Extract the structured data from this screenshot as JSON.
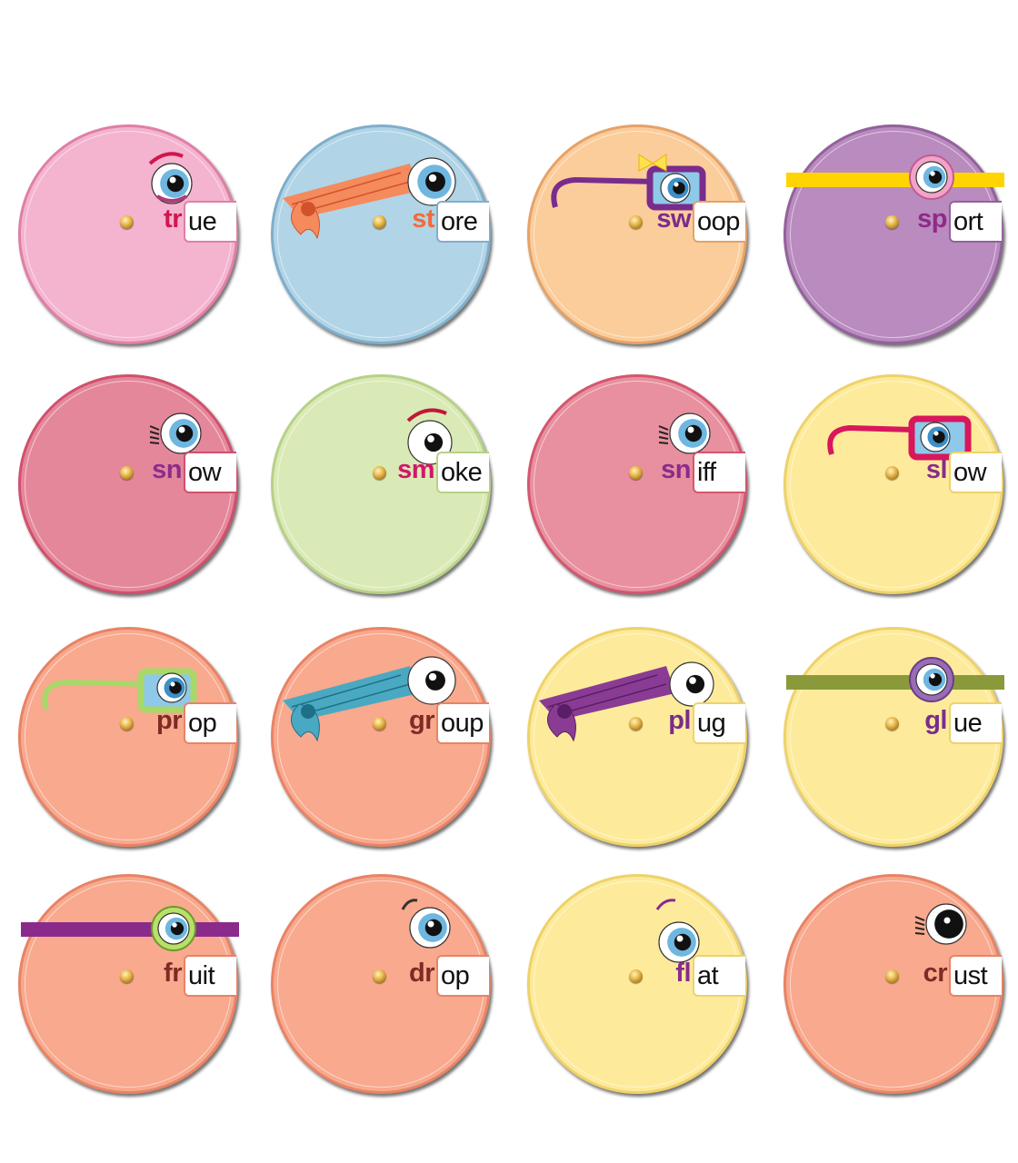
{
  "wheels": [
    {
      "blend": "tr",
      "rime": "ue",
      "bg": "#f4b4cf",
      "edge": "#e07fa6",
      "blendColor": "#d0174e",
      "deco": "eye-brow"
    },
    {
      "blend": "st",
      "rime": "ore",
      "bg": "#b1d4e6",
      "edge": "#7faecb",
      "blendColor": "#f26a3a",
      "deco": "bandana-orange"
    },
    {
      "blend": "sw",
      "rime": "oop",
      "bg": "#fbcd9b",
      "edge": "#e6a268",
      "blendColor": "#7a2c8c",
      "deco": "glasses-purple"
    },
    {
      "blend": "sp",
      "rime": "ort",
      "bg": "#b98bbf",
      "edge": "#93619b",
      "blendColor": "#8d2b87",
      "deco": "headband-yellow"
    },
    {
      "blend": "sn",
      "rime": "ow",
      "bg": "#e5879b",
      "edge": "#d1506d",
      "blendColor": "#8b2c8d",
      "deco": "eye-lashes"
    },
    {
      "blend": "sm",
      "rime": "oke",
      "bg": "#daeab6",
      "edge": "#b7d188",
      "blendColor": "#d4156a",
      "deco": "eye-brow-dark"
    },
    {
      "blend": "sn",
      "rime": "iff",
      "bg": "#e8909f",
      "edge": "#d4566f",
      "blendColor": "#8a2b8c",
      "deco": "eye-lashes"
    },
    {
      "blend": "sl",
      "rime": "ow",
      "bg": "#fdeb9b",
      "edge": "#eed26a",
      "blendColor": "#8a2b8c",
      "deco": "glasses-pink"
    },
    {
      "blend": "pr",
      "rime": "op",
      "bg": "#f8a98e",
      "edge": "#e88365",
      "blendColor": "#7d2b24",
      "deco": "glasses-green"
    },
    {
      "blend": "gr",
      "rime": "oup",
      "bg": "#f8a98e",
      "edge": "#e88365",
      "blendColor": "#7d2b24",
      "deco": "bandana-teal"
    },
    {
      "blend": "pl",
      "rime": "ug",
      "bg": "#fdeb9b",
      "edge": "#eed26a",
      "blendColor": "#7a2c8c",
      "deco": "bandana-purple"
    },
    {
      "blend": "gl",
      "rime": "ue",
      "bg": "#fdeb9b",
      "edge": "#eed26a",
      "blendColor": "#7a2c8c",
      "deco": "headband-olive"
    },
    {
      "blend": "fr",
      "rime": "uit",
      "bg": "#f8a98e",
      "edge": "#e88365",
      "blendColor": "#7d2b24",
      "deco": "headband-purple"
    },
    {
      "blend": "dr",
      "rime": "op",
      "bg": "#f8a98e",
      "edge": "#e88365",
      "blendColor": "#7d2b24",
      "deco": "eye-brow-small"
    },
    {
      "blend": "fl",
      "rime": "at",
      "bg": "#fdeb9b",
      "edge": "#eed26a",
      "blendColor": "#8a2b8c",
      "deco": "eye-brow-purple"
    },
    {
      "blend": "cr",
      "rime": "ust",
      "bg": "#f8a98e",
      "edge": "#e88365",
      "blendColor": "#7d2b24",
      "deco": "eye-lashes-dark"
    }
  ]
}
